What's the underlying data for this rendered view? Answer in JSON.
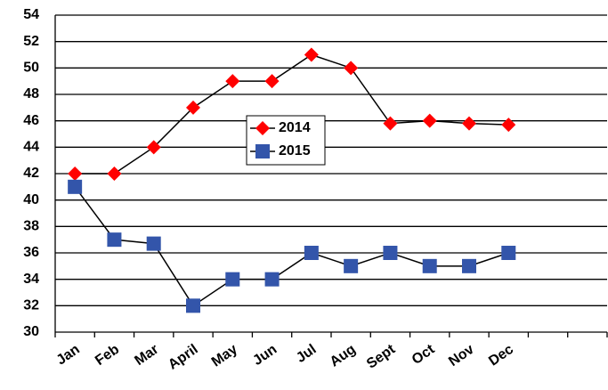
{
  "chart_data": {
    "type": "line",
    "categories": [
      "Jan",
      "Feb",
      "Mar",
      "April",
      "May",
      "Jun",
      "Jul",
      "Aug",
      "Sept",
      "Oct",
      "Nov",
      "Dec",
      null,
      null
    ],
    "series": [
      {
        "name": "2014",
        "color": "#ff0000",
        "marker": "diamond",
        "values": [
          42,
          42,
          44,
          47,
          49,
          49,
          51,
          50,
          45.8,
          46,
          45.8,
          45.7,
          null,
          null
        ]
      },
      {
        "name": "2015",
        "color": "#3355aa",
        "marker": "square",
        "values": [
          41,
          37,
          36.7,
          32,
          34,
          34,
          36,
          35,
          36,
          35,
          35,
          36,
          null,
          null
        ]
      }
    ],
    "ylim": [
      30,
      54
    ],
    "yticks": [
      30,
      32,
      34,
      36,
      38,
      40,
      42,
      44,
      46,
      48,
      50,
      52,
      54
    ],
    "grid": true,
    "legend": "center"
  }
}
